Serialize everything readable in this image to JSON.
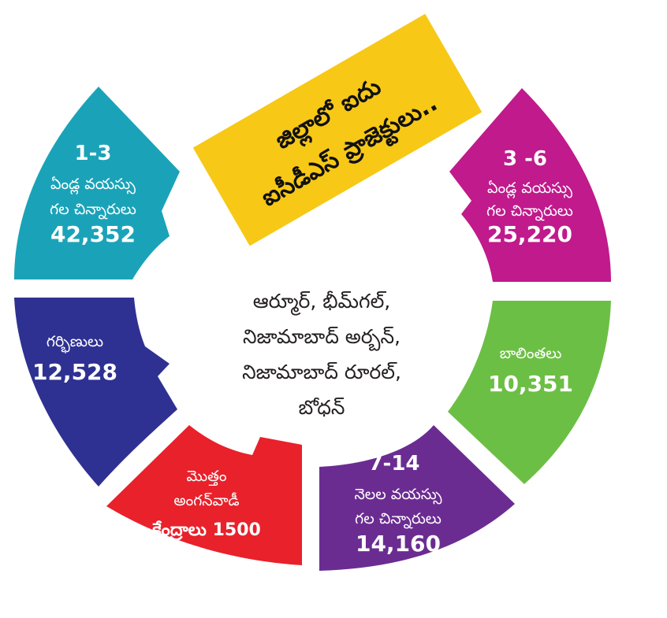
{
  "banner": {
    "line1": "జిల్లాలో ఐదు",
    "line2": "ఐసీడీఎస్ ప్రాజెక్టులు..",
    "color": "#f7c816"
  },
  "center": {
    "lines": [
      "ఆర్మూర్, భీమ్‌గల్,",
      "నిజామాబాద్ అర్బన్,",
      "నిజామాబాద్ రూరల్,",
      "బోధన్"
    ]
  },
  "segments": [
    {
      "id": "teal",
      "color": "#1aa3b8",
      "lines": [
        {
          "text": "1-3",
          "style": "title"
        },
        {
          "text": "ఏండ్ల వయస్సు",
          "style": "sub"
        },
        {
          "text": "గల చిన్నారులు",
          "style": "sub"
        },
        {
          "text": "42,352",
          "style": "val"
        }
      ]
    },
    {
      "id": "magenta",
      "color": "#c01a8c",
      "lines": [
        {
          "text": "3 -6",
          "style": "title"
        },
        {
          "text": "ఏండ్ల వయస్సు",
          "style": "sub"
        },
        {
          "text": "గల చిన్నారులు",
          "style": "sub"
        },
        {
          "text": "25,220",
          "style": "val"
        }
      ]
    },
    {
      "id": "navy",
      "color": "#2e3192",
      "lines": [
        {
          "text": "గర్భిణులు",
          "style": "sub"
        },
        {
          "text": "12,528",
          "style": "val"
        }
      ]
    },
    {
      "id": "green",
      "color": "#6cbf45",
      "lines": [
        {
          "text": "బాలింతలు",
          "style": "sub"
        },
        {
          "text": "10,351",
          "style": "val"
        }
      ]
    },
    {
      "id": "red",
      "color": "#e8212b",
      "lines": [
        {
          "text": "మొత్తం",
          "style": "sub"
        },
        {
          "text": "అంగన్‌వాడీ",
          "style": "sub"
        },
        {
          "text": "కేంద్రాలు 1500",
          "style": "valinline"
        }
      ]
    },
    {
      "id": "purple",
      "color": "#6b2c91",
      "lines": [
        {
          "text": "7-14",
          "style": "title"
        },
        {
          "text": "నెలల వయస్సు",
          "style": "sub"
        },
        {
          "text": "గల చిన్నారులు",
          "style": "sub"
        },
        {
          "text": "14,160",
          "style": "val"
        }
      ]
    }
  ]
}
